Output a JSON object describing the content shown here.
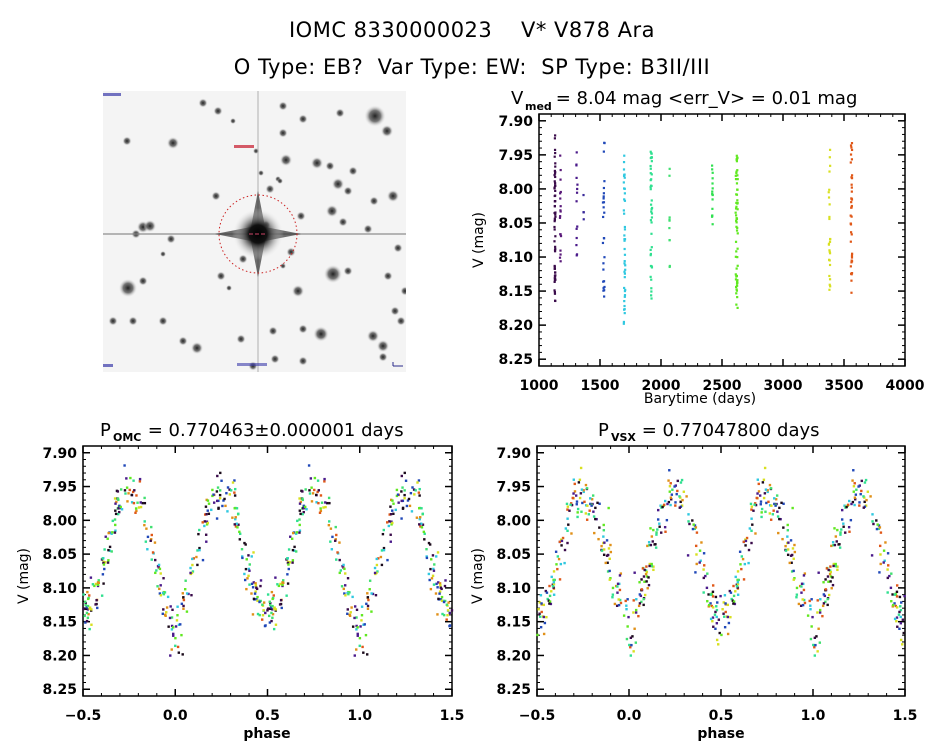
{
  "header": {
    "title": "IOMC 8330000023    V* V878 Ara",
    "subtitle": "O Type: EB?  Var Type: EW:  SP Type: B3II/III"
  },
  "image_panel": {
    "description": "inverted grayscale sky image centered on target star",
    "marker_color": "#cc2222",
    "label_color": "#2a2a9a"
  },
  "chart_data": [
    {
      "id": "timeseries",
      "type": "scatter",
      "title_main": "V",
      "title_sub": "med",
      "title_rest": " = 8.04 mag <err_V> = 0.01 mag",
      "xlabel": "Barytime (days)",
      "ylabel": "V (mag)",
      "xlim": [
        1000,
        4000
      ],
      "ylim": [
        8.26,
        7.89
      ],
      "y_inverted": true,
      "xticks": [
        1000,
        1500,
        2000,
        2500,
        3000,
        3500,
        4000
      ],
      "xtick_labels": [
        "1000",
        "1500",
        "2000",
        "2500",
        "3000",
        "3500",
        "4000"
      ],
      "yticks": [
        7.9,
        7.95,
        8.0,
        8.05,
        8.1,
        8.15,
        8.2,
        8.25
      ],
      "ytick_labels": [
        "7.90",
        "7.95",
        "8.00",
        "8.05",
        "8.10",
        "8.15",
        "8.20",
        "8.25"
      ],
      "groups": [
        {
          "t": 1130,
          "spread": 8,
          "ymin": 7.92,
          "ymax": 8.165,
          "n": 60,
          "color": "#3a0b4a"
        },
        {
          "t": 1175,
          "spread": 10,
          "ymin": 7.95,
          "ymax": 8.12,
          "n": 18,
          "color": "#5a1a7a"
        },
        {
          "t": 1310,
          "spread": 10,
          "ymin": 7.945,
          "ymax": 8.1,
          "n": 14,
          "color": "#4a1a8a"
        },
        {
          "t": 1365,
          "spread": 4,
          "ymin": 8.0,
          "ymax": 8.065,
          "n": 4,
          "color": "#3a2a9a"
        },
        {
          "t": 1530,
          "spread": 14,
          "ymin": 7.925,
          "ymax": 8.16,
          "n": 26,
          "color": "#2048b8"
        },
        {
          "t": 1700,
          "spread": 12,
          "ymin": 7.95,
          "ymax": 8.2,
          "n": 42,
          "color": "#30c8e0"
        },
        {
          "t": 1920,
          "spread": 12,
          "ymin": 7.935,
          "ymax": 8.165,
          "n": 40,
          "color": "#30e090"
        },
        {
          "t": 2070,
          "spread": 6,
          "ymin": 7.965,
          "ymax": 8.135,
          "n": 10,
          "color": "#40e070"
        },
        {
          "t": 2420,
          "spread": 6,
          "ymin": 7.965,
          "ymax": 8.055,
          "n": 16,
          "color": "#30e050"
        },
        {
          "t": 2620,
          "spread": 18,
          "ymin": 7.95,
          "ymax": 8.175,
          "n": 60,
          "color": "#60e820"
        },
        {
          "t": 3380,
          "spread": 12,
          "ymin": 7.94,
          "ymax": 8.15,
          "n": 26,
          "color": "#d8e020"
        },
        {
          "t": 3560,
          "spread": 12,
          "ymin": 7.93,
          "ymax": 8.16,
          "n": 40,
          "color": "#e05818"
        }
      ]
    },
    {
      "id": "phase-omc",
      "type": "scatter",
      "title_main": "P",
      "title_sub": "OMC",
      "title_rest": " = 0.770463±0.000001 days",
      "xlabel": "phase",
      "ylabel": "V (mag)",
      "xlim": [
        -0.5,
        1.5
      ],
      "ylim": [
        8.26,
        7.89
      ],
      "y_inverted": true,
      "xticks": [
        -0.5,
        0.0,
        0.5,
        1.0,
        1.5
      ],
      "xtick_labels": [
        "−0.5",
        "0.0",
        "0.5",
        "1.0",
        "1.5"
      ],
      "yticks": [
        7.9,
        7.95,
        8.0,
        8.05,
        8.1,
        8.15,
        8.2,
        8.25
      ],
      "ytick_labels": [
        "7.90",
        "7.95",
        "8.00",
        "8.05",
        "8.10",
        "8.15",
        "8.20",
        "8.25"
      ],
      "model": {
        "mean": 8.045,
        "primary_depth": 8.14,
        "secondary_depth": 8.135,
        "max": 7.955,
        "scatter": 0.018
      },
      "primary_min_phase": 0.0,
      "secondary_min_phase": 0.52
    },
    {
      "id": "phase-vsx",
      "type": "scatter",
      "title_main": "P",
      "title_sub": "VSX",
      "title_rest": " = 0.77047800 days",
      "xlabel": "phase",
      "ylabel": "V (mag)",
      "xlim": [
        -0.5,
        1.5
      ],
      "ylim": [
        8.26,
        7.89
      ],
      "y_inverted": true,
      "xticks": [
        -0.5,
        0.0,
        0.5,
        1.0,
        1.5
      ],
      "xtick_labels": [
        "−0.5",
        "0.0",
        "0.5",
        "1.0",
        "1.5"
      ],
      "yticks": [
        7.9,
        7.95,
        8.0,
        8.05,
        8.1,
        8.15,
        8.2,
        8.25
      ],
      "ytick_labels": [
        "7.90",
        "7.95",
        "8.00",
        "8.05",
        "8.10",
        "8.15",
        "8.20",
        "8.25"
      ],
      "model": {
        "mean": 8.045,
        "primary_depth": 8.14,
        "secondary_depth": 8.135,
        "max": 7.955,
        "scatter": 0.02
      },
      "primary_min_phase": 0.0,
      "secondary_min_phase": 0.5
    }
  ],
  "season_colors": [
    "#1a0a1a",
    "#3a0b4a",
    "#4a1a8a",
    "#2048b8",
    "#30c8e0",
    "#30e090",
    "#40e070",
    "#60e820",
    "#d8e020",
    "#e09018",
    "#e05818"
  ]
}
